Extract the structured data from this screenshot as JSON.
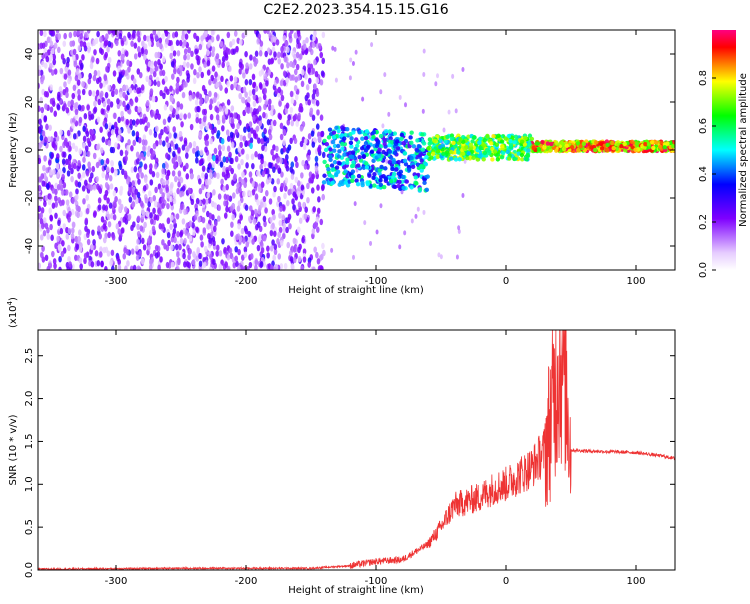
{
  "title": "C2E2.2023.354.15.15.G16",
  "chart_data": [
    {
      "type": "heatmap",
      "xlabel": "Height of straight line (km)",
      "ylabel": "Frequency (Hz)",
      "xlim": [
        -360,
        130
      ],
      "ylim": [
        -50,
        50
      ],
      "x_ticks": [
        -300,
        -200,
        -100,
        0,
        100
      ],
      "y_ticks": [
        -40,
        -20,
        0,
        20,
        40
      ],
      "colorbar": {
        "label": "Normalized spectral amplitude",
        "range": [
          0,
          1
        ],
        "ticks": [
          "0.0",
          "0.2",
          "0.4",
          "0.6",
          "0.8"
        ],
        "colors": [
          "#ffffff",
          "#e6ccff",
          "#b266ff",
          "#7f00ff",
          "#4000ff",
          "#0000ff",
          "#0080ff",
          "#00ffff",
          "#00ff80",
          "#00ff00",
          "#80ff00",
          "#ffff00",
          "#ff8000",
          "#ff0000",
          "#ff0080"
        ]
      },
      "regions": [
        {
          "x_range": [
            -360,
            -140
          ],
          "freq_range": [
            -50,
            50
          ],
          "amplitude": "0.0-0.25",
          "note": "broadband purple noise"
        },
        {
          "x_range": [
            -140,
            -60
          ],
          "freq_range": [
            -15,
            12
          ],
          "amplitude": "0.2-0.6"
        },
        {
          "x_range": [
            -60,
            20
          ],
          "freq_range": [
            -5,
            10
          ],
          "amplitude": "0.4-0.9"
        },
        {
          "x_range": [
            20,
            130
          ],
          "freq_range": [
            -2,
            4
          ],
          "amplitude": "0.6-1.0",
          "center_freq": 1.5
        }
      ]
    },
    {
      "type": "line",
      "xlabel": "Height of straight line (km)",
      "ylabel": "SNR (10 * v/v)",
      "multiplier_label": "(x10",
      "multiplier_exp": "4",
      "multiplier_close": ")",
      "xlim": [
        -360,
        130
      ],
      "ylim": [
        0,
        2.8
      ],
      "x_ticks": [
        -300,
        -200,
        -100,
        0,
        100
      ],
      "y_ticks": [
        "0.0",
        "0.5",
        "1.0",
        "1.5",
        "2.0",
        "2.5"
      ],
      "color": "#ee3333",
      "envelope": [
        {
          "x": -360,
          "y": 0.01
        },
        {
          "x": -250,
          "y": 0.02
        },
        {
          "x": -150,
          "y": 0.02
        },
        {
          "x": -120,
          "y": 0.05
        },
        {
          "x": -100,
          "y": 0.1
        },
        {
          "x": -80,
          "y": 0.12
        },
        {
          "x": -60,
          "y": 0.3
        },
        {
          "x": -50,
          "y": 0.5
        },
        {
          "x": -40,
          "y": 0.75
        },
        {
          "x": -30,
          "y": 0.8
        },
        {
          "x": -20,
          "y": 0.85
        },
        {
          "x": -10,
          "y": 0.95
        },
        {
          "x": 0,
          "y": 1.0
        },
        {
          "x": 10,
          "y": 1.1
        },
        {
          "x": 20,
          "y": 1.2
        },
        {
          "x": 30,
          "y": 1.4
        },
        {
          "x": 35,
          "y": 1.8
        },
        {
          "x": 40,
          "y": 2.5
        },
        {
          "x": 45,
          "y": 2.4
        },
        {
          "x": 50,
          "y": 1.4
        },
        {
          "x": 60,
          "y": 1.39
        },
        {
          "x": 80,
          "y": 1.38
        },
        {
          "x": 100,
          "y": 1.37
        },
        {
          "x": 120,
          "y": 1.33
        },
        {
          "x": 130,
          "y": 1.3
        }
      ]
    }
  ]
}
